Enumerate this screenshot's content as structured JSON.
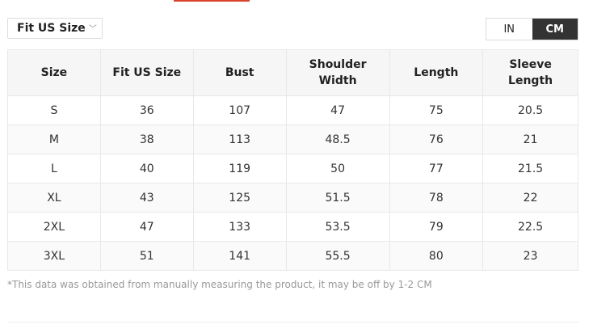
{
  "fit_dropdown": {
    "label": "Fit US Size",
    "icon": "chevron-down-icon"
  },
  "units": {
    "options": [
      "IN",
      "CM"
    ],
    "selected": "CM"
  },
  "colors": {
    "accent": "#d9422b",
    "toggle_active": "#333333"
  },
  "table": {
    "headers": [
      "Size",
      "Fit US Size",
      "Bust",
      "Shoulder Width",
      "Length",
      "Sleeve Length"
    ],
    "rows": [
      [
        "S",
        "36",
        "107",
        "47",
        "75",
        "20.5"
      ],
      [
        "M",
        "38",
        "113",
        "48.5",
        "76",
        "21"
      ],
      [
        "L",
        "40",
        "119",
        "50",
        "77",
        "21.5"
      ],
      [
        "XL",
        "43",
        "125",
        "51.5",
        "78",
        "22"
      ],
      [
        "2XL",
        "47",
        "133",
        "53.5",
        "79",
        "22.5"
      ],
      [
        "3XL",
        "51",
        "141",
        "55.5",
        "80",
        "23"
      ]
    ]
  },
  "note": "*This data was obtained from manually measuring the product, it may be off by 1-2 CM"
}
